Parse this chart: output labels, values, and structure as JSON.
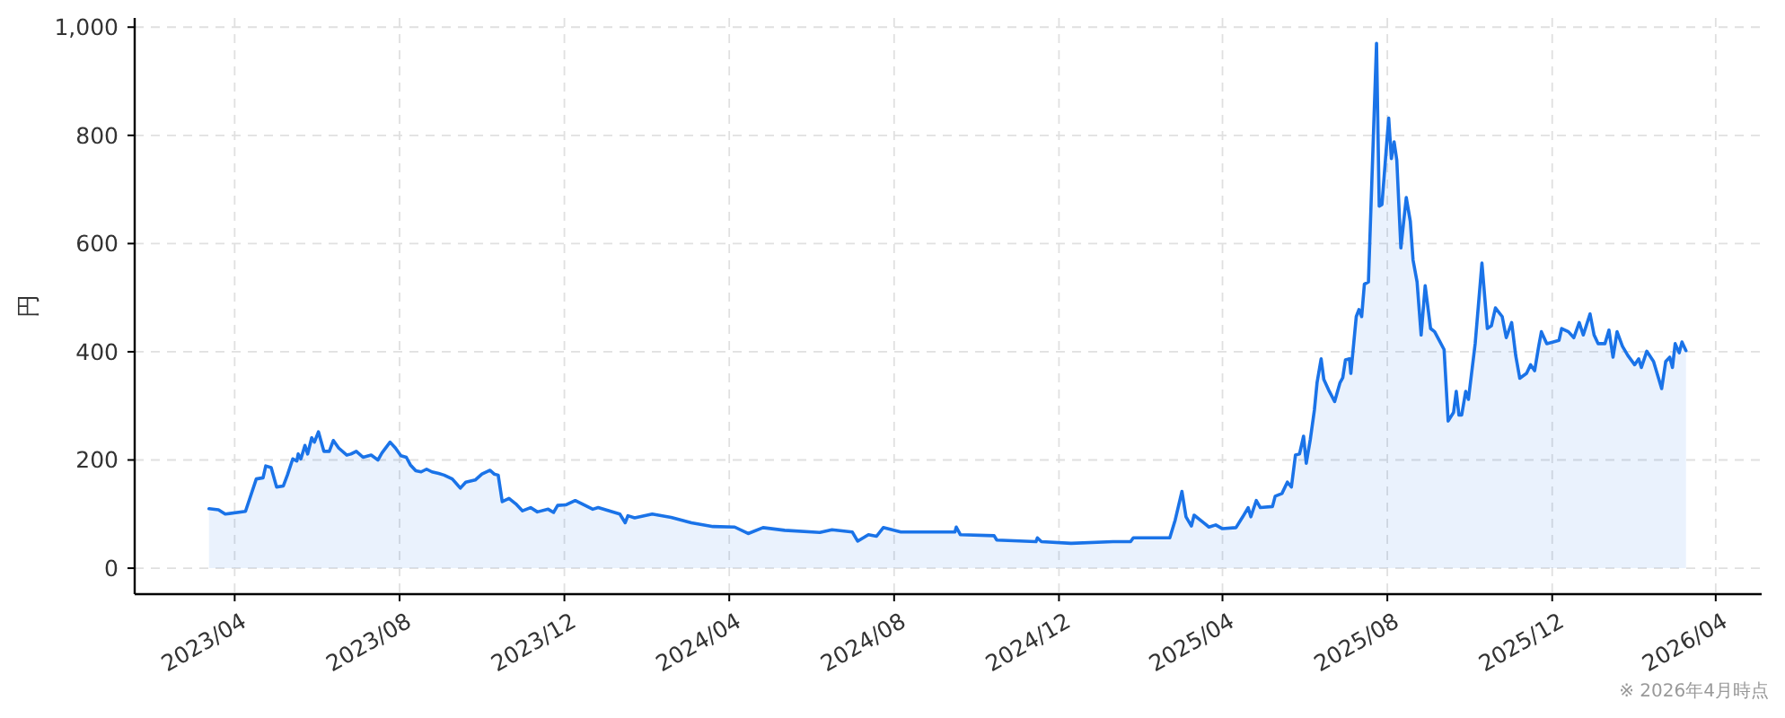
{
  "chart_data": {
    "type": "area",
    "ylabel": "円",
    "annotations": [
      "※ 2026年4月時点"
    ],
    "grid": true,
    "xlim": [
      "2023-01-17",
      "2026-05-05"
    ],
    "ylim": [
      -48,
      1017
    ],
    "xticks": [
      {
        "value": "2023-04",
        "label": "2023/04"
      },
      {
        "value": "2023-08",
        "label": "2023/08"
      },
      {
        "value": "2023-12",
        "label": "2023/12"
      },
      {
        "value": "2024-04",
        "label": "2024/04"
      },
      {
        "value": "2024-08",
        "label": "2024/08"
      },
      {
        "value": "2024-12",
        "label": "2024/12"
      },
      {
        "value": "2025-04",
        "label": "2025/04"
      },
      {
        "value": "2025-08",
        "label": "2025/08"
      },
      {
        "value": "2025-12",
        "label": "2025/12"
      },
      {
        "value": "2026-04",
        "label": "2026/04"
      }
    ],
    "yticks": [
      0,
      200,
      400,
      600,
      800,
      {
        "value": 1000,
        "label": "1,000"
      }
    ],
    "x": [
      "2023-03-13",
      "2023-03-20",
      "2023-03-25",
      "2023-04-09",
      "2023-04-17",
      "2023-04-22",
      "2023-04-24",
      "2023-04-28",
      "2023-05-02",
      "2023-05-07",
      "2023-05-10",
      "2023-05-14",
      "2023-05-17",
      "2023-05-18",
      "2023-05-20",
      "2023-05-23",
      "2023-05-25",
      "2023-05-28",
      "2023-05-30",
      "2023-06-02",
      "2023-06-06",
      "2023-06-10",
      "2023-06-13",
      "2023-06-17",
      "2023-06-23",
      "2023-06-26",
      "2023-06-30",
      "2023-07-05",
      "2023-07-11",
      "2023-07-16",
      "2023-07-19",
      "2023-07-25",
      "2023-07-29",
      "2023-08-02",
      "2023-08-06",
      "2023-08-09",
      "2023-08-13",
      "2023-08-17",
      "2023-08-21",
      "2023-08-25",
      "2023-08-30",
      "2023-09-03",
      "2023-09-09",
      "2023-09-15",
      "2023-09-19",
      "2023-09-26",
      "2023-10-01",
      "2023-10-07",
      "2023-10-10",
      "2023-10-13",
      "2023-10-16",
      "2023-10-21",
      "2023-10-26",
      "2023-10-31",
      "2023-11-06",
      "2023-11-11",
      "2023-11-19",
      "2023-11-23",
      "2023-11-26",
      "2023-12-02",
      "2023-12-09",
      "2023-12-22",
      "2023-12-26",
      "2024-01-11",
      "2024-01-15",
      "2024-01-17",
      "2024-01-22",
      "2024-02-04",
      "2024-02-18",
      "2024-03-04",
      "2024-03-20",
      "2024-04-05",
      "2024-04-15",
      "2024-04-26",
      "2024-05-12",
      "2024-06-07",
      "2024-06-16",
      "2024-07-01",
      "2024-07-05",
      "2024-07-13",
      "2024-07-19",
      "2024-07-24",
      "2024-08-06",
      "2024-08-30",
      "2024-09-15",
      "2024-09-16",
      "2024-09-19",
      "2024-10-14",
      "2024-10-16",
      "2024-11-14",
      "2024-11-15",
      "2024-11-18",
      "2024-12-10",
      "2025-01-10",
      "2025-01-23",
      "2025-01-25",
      "2025-02-21",
      "2025-02-25",
      "2025-03-02",
      "2025-03-05",
      "2025-03-09",
      "2025-03-11",
      "2025-03-18",
      "2025-03-22",
      "2025-03-27",
      "2025-04-01",
      "2025-04-11",
      "2025-04-16",
      "2025-04-20",
      "2025-04-22",
      "2025-04-26",
      "2025-04-29",
      "2025-05-08",
      "2025-05-10",
      "2025-05-15",
      "2025-05-19",
      "2025-05-22",
      "2025-05-25",
      "2025-05-28",
      "2025-05-31",
      "2025-06-02",
      "2025-06-05",
      "2025-06-08",
      "2025-06-10",
      "2025-06-13",
      "2025-06-15",
      "2025-06-19",
      "2025-06-23",
      "2025-06-27",
      "2025-06-29",
      "2025-07-01",
      "2025-07-04",
      "2025-07-05",
      "2025-07-09",
      "2025-07-11",
      "2025-07-13",
      "2025-07-15",
      "2025-07-18",
      "2025-07-24",
      "2025-07-26",
      "2025-07-28",
      "2025-08-02",
      "2025-08-04",
      "2025-08-06",
      "2025-08-08",
      "2025-08-11",
      "2025-08-15",
      "2025-08-18",
      "2025-08-20",
      "2025-08-23",
      "2025-08-26",
      "2025-08-29",
      "2025-09-02",
      "2025-09-05",
      "2025-09-08",
      "2025-09-12",
      "2025-09-15",
      "2025-09-19",
      "2025-09-21",
      "2025-09-23",
      "2025-09-25",
      "2025-09-28",
      "2025-09-30",
      "2025-10-05",
      "2025-10-10",
      "2025-10-14",
      "2025-10-17",
      "2025-10-20",
      "2025-10-25",
      "2025-10-28",
      "2025-11-01",
      "2025-11-04",
      "2025-11-07",
      "2025-11-12",
      "2025-11-15",
      "2025-11-18",
      "2025-11-21",
      "2025-11-23",
      "2025-11-27",
      "2025-12-06",
      "2025-12-08",
      "2025-12-13",
      "2025-12-17",
      "2025-12-21",
      "2025-12-24",
      "2025-12-29",
      "2026-01-01",
      "2026-01-04",
      "2026-01-09",
      "2026-01-12",
      "2026-01-15",
      "2026-01-18",
      "2026-01-22",
      "2026-01-26",
      "2026-01-31",
      "2026-02-03",
      "2026-02-05",
      "2026-02-09",
      "2026-02-14",
      "2026-02-20",
      "2026-02-23",
      "2026-02-26",
      "2026-02-28",
      "2026-03-02",
      "2026-03-05",
      "2026-03-07",
      "2026-03-10"
    ],
    "series": [
      {
        "color": "#1a73e8",
        "values": [
          110,
          108,
          100,
          105,
          165,
          167,
          189,
          186,
          150,
          152,
          172,
          202,
          198,
          211,
          202,
          227,
          211,
          241,
          233,
          252,
          216,
          216,
          236,
          222,
          209,
          211,
          216,
          205,
          209,
          200,
          213,
          233,
          222,
          208,
          205,
          191,
          180,
          178,
          183,
          178,
          175,
          172,
          165,
          148,
          159,
          163,
          174,
          181,
          174,
          172,
          123,
          129,
          119,
          106,
          112,
          104,
          109,
          103,
          116,
          117,
          125,
          109,
          112,
          100,
          84,
          97,
          93,
          100,
          94,
          84,
          77,
          76,
          64,
          75,
          70,
          66,
          71,
          67,
          50,
          62,
          59,
          75,
          67,
          67,
          67,
          76,
          62,
          60,
          52,
          49,
          56,
          49,
          46,
          49,
          49,
          56,
          56,
          89,
          142,
          95,
          78,
          98,
          84,
          76,
          80,
          73,
          75,
          95,
          112,
          95,
          125,
          112,
          114,
          133,
          138,
          159,
          150,
          209,
          211,
          244,
          194,
          238,
          292,
          343,
          387,
          349,
          327,
          308,
          343,
          352,
          385,
          387,
          360,
          465,
          478,
          465,
          525,
          529,
          970,
          669,
          672,
          832,
          757,
          788,
          754,
          592,
          685,
          641,
          570,
          529,
          431,
          522,
          443,
          437,
          423,
          404,
          272,
          288,
          327,
          283,
          283,
          327,
          312,
          415,
          564,
          443,
          448,
          481,
          465,
          426,
          454,
          393,
          351,
          360,
          376,
          365,
          410,
          437,
          415,
          421,
          443,
          437,
          426,
          454,
          431,
          470,
          431,
          415,
          415,
          440,
          390,
          437,
          410,
          393,
          376,
          387,
          371,
          401,
          382,
          332,
          382,
          390,
          371,
          415,
          398,
          418,
          402
        ]
      }
    ]
  }
}
